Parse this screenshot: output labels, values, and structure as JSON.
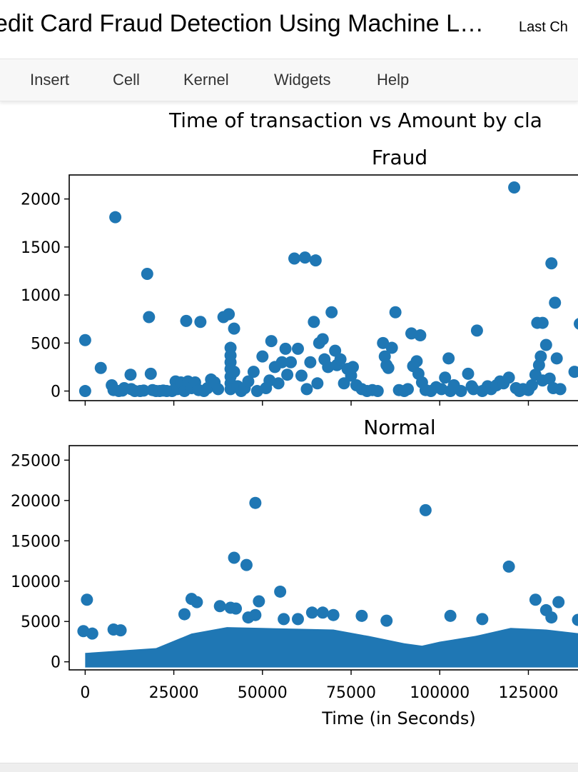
{
  "header": {
    "title": "edit Card Fraud Detection Using Machine L…",
    "last_checkpoint": "Last Ch"
  },
  "menu": {
    "items": [
      "Insert",
      "Cell",
      "Kernel",
      "Widgets",
      "Help"
    ]
  },
  "colors": {
    "point": "#1f77b4"
  },
  "chart_data": {
    "type": "scatter",
    "suptitle": "Time of transaction vs Amount by cla",
    "xlabel": "Time (in Seconds)",
    "xlim": [
      -4500,
      140000
    ],
    "xticks": [
      0,
      25000,
      50000,
      75000,
      100000,
      125000
    ],
    "xtick_labels": [
      "0",
      "25000",
      "50000",
      "75000",
      "100000",
      "125000"
    ],
    "subplots": [
      {
        "title": "Fraud",
        "ylim": [
          -100,
          2250
        ],
        "yticks": [
          0,
          500,
          1000,
          1500,
          2000
        ],
        "ytick_labels": [
          "0",
          "500",
          "1000",
          "1500",
          "2000"
        ],
        "points": [
          [
            0,
            0
          ],
          [
            0,
            530
          ],
          [
            4400,
            240
          ],
          [
            8500,
            1810
          ],
          [
            7500,
            60
          ],
          [
            8000,
            10
          ],
          [
            9500,
            0
          ],
          [
            10500,
            5
          ],
          [
            11000,
            30
          ],
          [
            12800,
            170
          ],
          [
            13000,
            20
          ],
          [
            14000,
            0
          ],
          [
            15500,
            0
          ],
          [
            16500,
            5
          ],
          [
            17500,
            1220
          ],
          [
            18000,
            770
          ],
          [
            18500,
            180
          ],
          [
            19000,
            10
          ],
          [
            20000,
            0
          ],
          [
            21000,
            0
          ],
          [
            22000,
            5
          ],
          [
            23000,
            0
          ],
          [
            24500,
            0
          ],
          [
            25500,
            100
          ],
          [
            26000,
            20
          ],
          [
            27000,
            90
          ],
          [
            28000,
            0
          ],
          [
            28500,
            730
          ],
          [
            29000,
            100
          ],
          [
            30000,
            30
          ],
          [
            31000,
            90
          ],
          [
            32000,
            10
          ],
          [
            32500,
            720
          ],
          [
            33500,
            0
          ],
          [
            34500,
            30
          ],
          [
            35500,
            120
          ],
          [
            36500,
            90
          ],
          [
            37500,
            20
          ],
          [
            39000,
            770
          ],
          [
            40500,
            800
          ],
          [
            41000,
            450
          ],
          [
            41000,
            370
          ],
          [
            41000,
            300
          ],
          [
            41000,
            230
          ],
          [
            41000,
            150
          ],
          [
            41000,
            80
          ],
          [
            41000,
            20
          ],
          [
            42000,
            650
          ],
          [
            42000,
            200
          ],
          [
            43000,
            50
          ],
          [
            44000,
            0
          ],
          [
            45000,
            30
          ],
          [
            46000,
            100
          ],
          [
            47500,
            200
          ],
          [
            48500,
            0
          ],
          [
            50000,
            360
          ],
          [
            51000,
            30
          ],
          [
            52000,
            110
          ],
          [
            52500,
            520
          ],
          [
            53500,
            250
          ],
          [
            54500,
            80
          ],
          [
            55500,
            300
          ],
          [
            56500,
            440
          ],
          [
            57000,
            170
          ],
          [
            58000,
            300
          ],
          [
            59000,
            1380
          ],
          [
            60000,
            440
          ],
          [
            61000,
            160
          ],
          [
            62000,
            1390
          ],
          [
            62500,
            20
          ],
          [
            63500,
            300
          ],
          [
            64500,
            720
          ],
          [
            65000,
            1360
          ],
          [
            65500,
            80
          ],
          [
            66000,
            500
          ],
          [
            67000,
            540
          ],
          [
            67500,
            330
          ],
          [
            68500,
            250
          ],
          [
            69500,
            820
          ],
          [
            70500,
            420
          ],
          [
            71000,
            270
          ],
          [
            72000,
            330
          ],
          [
            73000,
            80
          ],
          [
            74000,
            230
          ],
          [
            75000,
            160
          ],
          [
            75500,
            250
          ],
          [
            76500,
            60
          ],
          [
            78000,
            20
          ],
          [
            79500,
            0
          ],
          [
            81000,
            10
          ],
          [
            82500,
            0
          ],
          [
            84000,
            500
          ],
          [
            84500,
            360
          ],
          [
            85000,
            270
          ],
          [
            85500,
            240
          ],
          [
            86500,
            450
          ],
          [
            87500,
            820
          ],
          [
            88500,
            10
          ],
          [
            90000,
            0
          ],
          [
            91000,
            20
          ],
          [
            92000,
            600
          ],
          [
            92500,
            260
          ],
          [
            93500,
            310
          ],
          [
            94000,
            180
          ],
          [
            94500,
            580
          ],
          [
            95000,
            90
          ],
          [
            96000,
            10
          ],
          [
            97500,
            0
          ],
          [
            99000,
            40
          ],
          [
            100500,
            20
          ],
          [
            101500,
            140
          ],
          [
            102500,
            340
          ],
          [
            103000,
            0
          ],
          [
            104000,
            60
          ],
          [
            106000,
            0
          ],
          [
            108000,
            180
          ],
          [
            109000,
            50
          ],
          [
            109500,
            20
          ],
          [
            110500,
            630
          ],
          [
            112000,
            0
          ],
          [
            113500,
            50
          ],
          [
            114500,
            20
          ],
          [
            116000,
            60
          ],
          [
            117000,
            100
          ],
          [
            118000,
            80
          ],
          [
            119500,
            140
          ],
          [
            121000,
            2120
          ],
          [
            121500,
            30
          ],
          [
            122500,
            0
          ],
          [
            123500,
            20
          ],
          [
            125000,
            10
          ],
          [
            126000,
            60
          ],
          [
            127000,
            170
          ],
          [
            127500,
            710
          ],
          [
            128000,
            270
          ],
          [
            128500,
            360
          ],
          [
            129000,
            710
          ],
          [
            129000,
            110
          ],
          [
            130000,
            480
          ],
          [
            131500,
            1330
          ],
          [
            132500,
            920
          ],
          [
            133000,
            340
          ],
          [
            131000,
            130
          ],
          [
            132000,
            30
          ],
          [
            134000,
            20
          ],
          [
            138000,
            200
          ],
          [
            139500,
            700
          ]
        ]
      },
      {
        "title": "Normal",
        "ylim": [
          -1000,
          26800
        ],
        "yticks": [
          0,
          5000,
          10000,
          15000,
          20000,
          25000
        ],
        "ytick_labels": [
          "0",
          "5000",
          "10000",
          "15000",
          "20000",
          "25000"
        ],
        "outliers": [
          [
            -500,
            3800
          ],
          [
            500,
            7700
          ],
          [
            2000,
            3500
          ],
          [
            8000,
            4000
          ],
          [
            10000,
            3900
          ],
          [
            28000,
            5900
          ],
          [
            30000,
            7800
          ],
          [
            31500,
            7400
          ],
          [
            38000,
            6900
          ],
          [
            41000,
            6700
          ],
          [
            42500,
            6600
          ],
          [
            42000,
            12900
          ],
          [
            45500,
            12000
          ],
          [
            46000,
            5500
          ],
          [
            48000,
            19700
          ],
          [
            48000,
            5800
          ],
          [
            49000,
            7500
          ],
          [
            55000,
            8700
          ],
          [
            56000,
            5300
          ],
          [
            60000,
            5300
          ],
          [
            64000,
            6100
          ],
          [
            67000,
            6100
          ],
          [
            70000,
            5800
          ],
          [
            78000,
            5700
          ],
          [
            85000,
            5100
          ],
          [
            96000,
            18800
          ],
          [
            103000,
            5700
          ],
          [
            112000,
            5300
          ],
          [
            119500,
            11800
          ],
          [
            127000,
            7700
          ],
          [
            130000,
            6400
          ],
          [
            131500,
            5500
          ],
          [
            133500,
            7400
          ],
          [
            139000,
            5200
          ]
        ],
        "density": [
          [
            0,
            1100
          ],
          [
            10000,
            1400
          ],
          [
            20000,
            1700
          ],
          [
            30000,
            3500
          ],
          [
            40000,
            4300
          ],
          [
            50000,
            4200
          ],
          [
            60000,
            4100
          ],
          [
            70000,
            4000
          ],
          [
            80000,
            3200
          ],
          [
            90000,
            2300
          ],
          [
            95000,
            2000
          ],
          [
            100000,
            2500
          ],
          [
            110000,
            3200
          ],
          [
            120000,
            4200
          ],
          [
            130000,
            4000
          ],
          [
            140000,
            3500
          ]
        ]
      }
    ]
  }
}
